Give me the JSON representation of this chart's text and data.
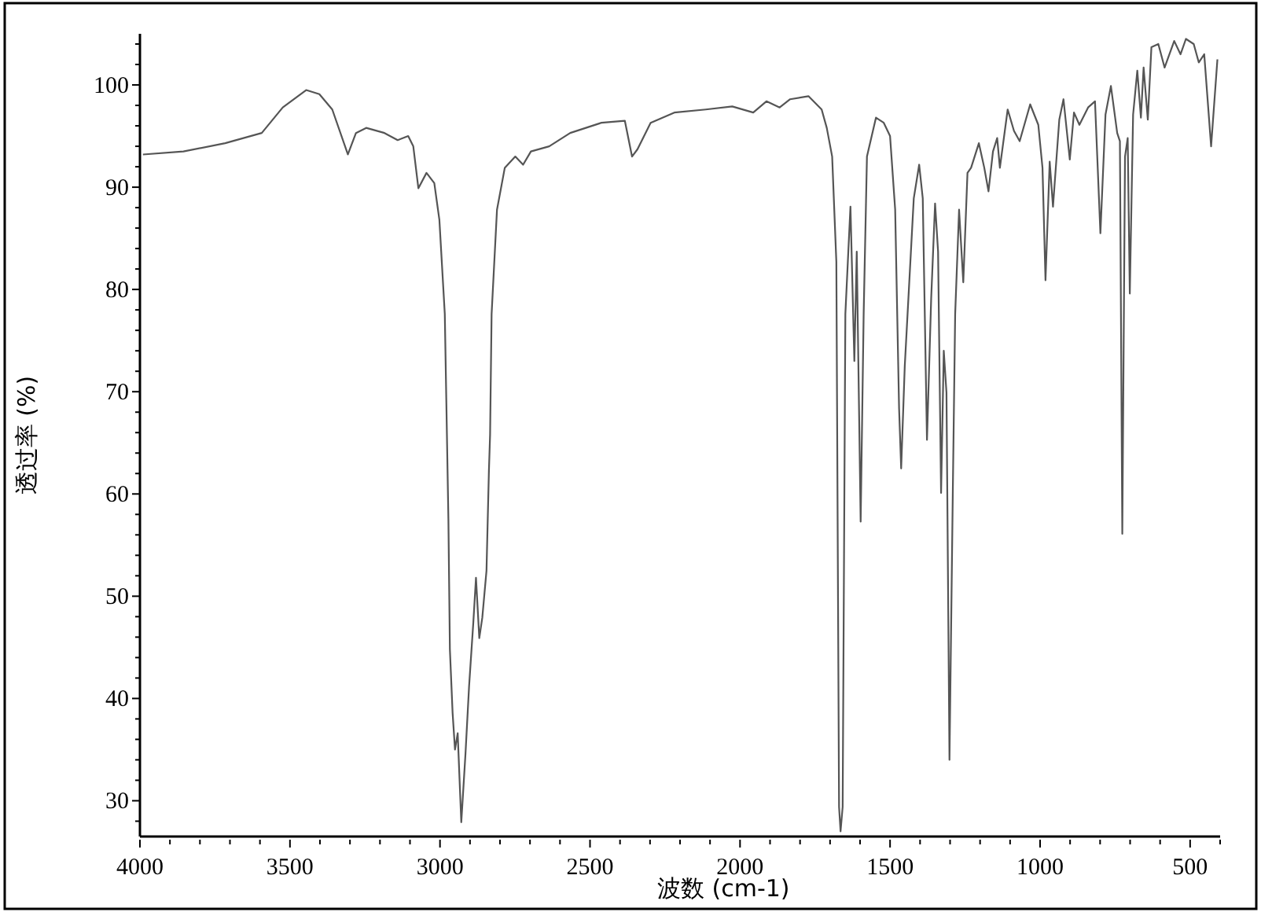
{
  "chart_data": {
    "type": "line",
    "xlabel": "波数 (cm-1)",
    "ylabel": "透过率 (%)",
    "color": "#555555",
    "grid": false,
    "xlim": [
      4000,
      400
    ],
    "ylim": [
      26.5,
      105
    ],
    "xticks": [
      4000,
      {
        "value": 3900,
        "label": null
      },
      {
        "value": 3800,
        "label": null
      },
      {
        "value": 3700,
        "label": null
      },
      {
        "value": 3600,
        "label": null
      },
      3500,
      {
        "value": 3400,
        "label": null
      },
      {
        "value": 3300,
        "label": null
      },
      {
        "value": 3200,
        "label": null
      },
      {
        "value": 3100,
        "label": null
      },
      3000,
      {
        "value": 2900,
        "label": null
      },
      {
        "value": 2800,
        "label": null
      },
      {
        "value": 2700,
        "label": null
      },
      {
        "value": 2600,
        "label": null
      },
      2500,
      {
        "value": 2400,
        "label": null
      },
      {
        "value": 2300,
        "label": null
      },
      {
        "value": 2200,
        "label": null
      },
      {
        "value": 2100,
        "label": null
      },
      2000,
      {
        "value": 1900,
        "label": null
      },
      {
        "value": 1800,
        "label": null
      },
      {
        "value": 1700,
        "label": null
      },
      {
        "value": 1600,
        "label": null
      },
      1500,
      {
        "value": 1400,
        "label": null
      },
      {
        "value": 1300,
        "label": null
      },
      {
        "value": 1200,
        "label": null
      },
      {
        "value": 1100,
        "label": null
      },
      1000,
      {
        "value": 900,
        "label": null
      },
      {
        "value": 800,
        "label": null
      },
      {
        "value": 700,
        "label": null
      },
      {
        "value": 600,
        "label": null
      },
      500,
      {
        "value": 400,
        "label": null
      }
    ],
    "yticks": [
      {
        "value": 28,
        "label": null
      },
      30,
      {
        "value": 32,
        "label": null
      },
      {
        "value": 34,
        "label": null
      },
      {
        "value": 36,
        "label": null
      },
      {
        "value": 38,
        "label": null
      },
      40,
      {
        "value": 42,
        "label": null
      },
      {
        "value": 44,
        "label": null
      },
      {
        "value": 46,
        "label": null
      },
      {
        "value": 48,
        "label": null
      },
      50,
      {
        "value": 52,
        "label": null
      },
      {
        "value": 54,
        "label": null
      },
      {
        "value": 56,
        "label": null
      },
      {
        "value": 58,
        "label": null
      },
      60,
      {
        "value": 62,
        "label": null
      },
      {
        "value": 64,
        "label": null
      },
      {
        "value": 66,
        "label": null
      },
      {
        "value": 68,
        "label": null
      },
      70,
      {
        "value": 72,
        "label": null
      },
      {
        "value": 74,
        "label": null
      },
      {
        "value": 76,
        "label": null
      },
      {
        "value": 78,
        "label": null
      },
      80,
      {
        "value": 82,
        "label": null
      },
      {
        "value": 84,
        "label": null
      },
      {
        "value": 86,
        "label": null
      },
      {
        "value": 88,
        "label": null
      },
      90,
      {
        "value": 92,
        "label": null
      },
      {
        "value": 94,
        "label": null
      },
      {
        "value": 96,
        "label": null
      },
      {
        "value": 98,
        "label": null
      },
      100,
      {
        "value": 102,
        "label": null
      },
      {
        "value": 104,
        "label": null
      }
    ],
    "x": [
      3990,
      3855,
      3716,
      3594,
      3524,
      3446,
      3402,
      3359,
      3307,
      3280,
      3246,
      3185,
      3141,
      3106,
      3089,
      3072,
      3045,
      3019,
      3002,
      2984,
      2972,
      2967,
      2958,
      2950,
      2941,
      2929,
      2915,
      2903,
      2889,
      2880,
      2869,
      2859,
      2845,
      2837,
      2833,
      2828,
      2810,
      2784,
      2749,
      2723,
      2697,
      2636,
      2566,
      2462,
      2384,
      2360,
      2342,
      2298,
      2219,
      2114,
      2026,
      1956,
      1912,
      1868,
      1833,
      1772,
      1728,
      1711,
      1693,
      1679,
      1670,
      1665,
      1658,
      1649,
      1632,
      1619,
      1611,
      1598,
      1588,
      1577,
      1547,
      1521,
      1500,
      1483,
      1470,
      1463,
      1451,
      1421,
      1403,
      1391,
      1377,
      1363,
      1350,
      1340,
      1330,
      1321,
      1312,
      1302,
      1291,
      1283,
      1270,
      1256,
      1242,
      1230,
      1204,
      1186,
      1172,
      1157,
      1143,
      1134,
      1108,
      1087,
      1068,
      1033,
      1006,
      992,
      982,
      968,
      957,
      936,
      922,
      901,
      887,
      869,
      840,
      817,
      799,
      782,
      764,
      743,
      734,
      726,
      717,
      708,
      701,
      690,
      676,
      664,
      655,
      641,
      629,
      606,
      585,
      553,
      532,
      514,
      488,
      471,
      453,
      430,
      409
    ],
    "values": [
      93.2,
      93.5,
      94.3,
      95.3,
      97.8,
      99.5,
      99.1,
      97.6,
      93.2,
      95.3,
      95.8,
      95.3,
      94.6,
      95.0,
      94.0,
      89.9,
      91.4,
      90.4,
      86.8,
      77.6,
      57.6,
      44.8,
      38.6,
      35.0,
      36.6,
      27.9,
      34.6,
      41.2,
      47.4,
      51.8,
      45.9,
      47.9,
      52.5,
      62.2,
      65.8,
      77.6,
      87.8,
      91.9,
      93.0,
      92.2,
      93.5,
      94.0,
      95.3,
      96.3,
      96.5,
      93.0,
      93.7,
      96.3,
      97.3,
      97.6,
      97.9,
      97.3,
      98.4,
      97.8,
      98.6,
      98.9,
      97.6,
      95.8,
      93.0,
      82.7,
      29.4,
      27.0,
      29.4,
      77.6,
      88.1,
      73.0,
      83.7,
      57.3,
      77.6,
      93.0,
      96.8,
      96.3,
      95.0,
      87.8,
      68.4,
      62.5,
      72.5,
      88.9,
      92.2,
      88.9,
      65.3,
      79.1,
      88.4,
      83.7,
      60.1,
      74.0,
      69.9,
      34.0,
      60.0,
      77.6,
      87.8,
      80.7,
      91.4,
      91.9,
      94.3,
      91.9,
      89.6,
      93.5,
      94.8,
      91.9,
      97.6,
      95.5,
      94.5,
      98.1,
      96.1,
      91.9,
      80.9,
      92.5,
      88.1,
      96.6,
      98.6,
      92.7,
      97.3,
      96.1,
      97.8,
      98.4,
      85.5,
      97.1,
      99.9,
      95.3,
      94.5,
      56.1,
      93.0,
      94.8,
      79.6,
      97.1,
      101.4,
      96.8,
      101.7,
      96.6,
      103.7,
      104.0,
      101.7,
      104.3,
      103.0,
      104.5,
      104.0,
      102.2,
      103.0,
      94.0,
      102.5
    ]
  }
}
